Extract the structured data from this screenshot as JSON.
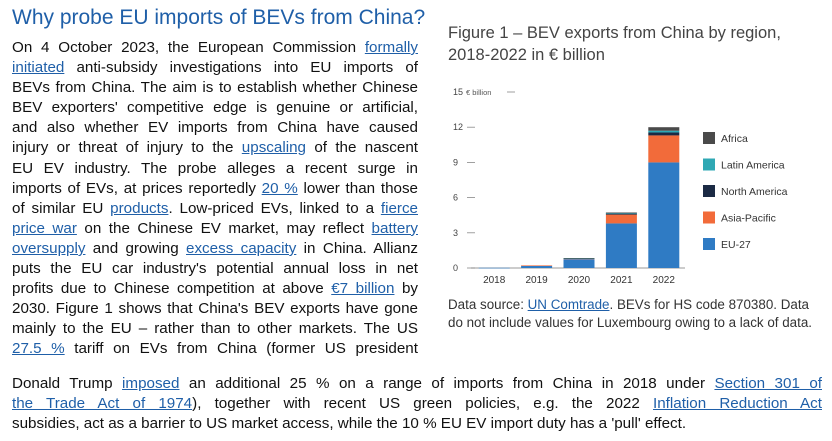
{
  "article": {
    "heading": "Why probe EU imports of BEVs from China?",
    "lines": [
      [
        {
          "t": "On 4 October 2023, the European Commission "
        },
        {
          "t": "formally",
          "link": true
        }
      ],
      [
        {
          "t": "initiated",
          "link": true
        },
        {
          "t": " anti-subsidy investigations into EU imports of"
        }
      ],
      [
        {
          "t": "BEVs from China. The aim is to establish whether Chinese"
        }
      ],
      [
        {
          "t": "BEV exporters' competitive edge is genuine or artificial,"
        }
      ],
      [
        {
          "t": "and also whether EV imports from China have caused"
        }
      ],
      [
        {
          "t": "injury or threat of injury to the "
        },
        {
          "t": "upscaling",
          "link": true
        },
        {
          "t": " of the nascent"
        }
      ],
      [
        {
          "t": "EU EV industry. The probe alleges a recent surge in"
        }
      ],
      [
        {
          "t": "imports of EVs, at prices reportedly "
        },
        {
          "t": "20 %",
          "link": true
        },
        {
          "t": " lower than those"
        }
      ],
      [
        {
          "t": "of similar EU "
        },
        {
          "t": "products",
          "link": true
        },
        {
          "t": ". Low-priced EVs, linked to a "
        },
        {
          "t": "fierce",
          "link": true
        }
      ],
      [
        {
          "t": "price war",
          "link": true
        },
        {
          "t": " on the Chinese EV market, may reflect "
        },
        {
          "t": "battery",
          "link": true
        }
      ],
      [
        {
          "t": "oversupply",
          "link": true
        },
        {
          "t": " and growing "
        },
        {
          "t": "excess capacity",
          "link": true
        },
        {
          "t": " in China. Allianz"
        }
      ],
      [
        {
          "t": "puts the EU car industry's potential annual loss in net"
        }
      ],
      [
        {
          "t": "profits due to Chinese competition at above "
        },
        {
          "t": "€7 billion",
          "link": true
        },
        {
          "t": " by"
        }
      ],
      [
        {
          "t": "2030. Figure 1 shows that China's BEV exports have gone"
        }
      ],
      [
        {
          "t": "mainly to the EU – rather than to other markets. The US"
        }
      ],
      [
        {
          "t": "27.5 %",
          "link": true
        },
        {
          "t": " tariff on EVs from China (former US president"
        }
      ]
    ],
    "full_lines": [
      [
        {
          "t": "Donald Trump "
        },
        {
          "t": "imposed",
          "link": true
        },
        {
          "t": " an additional 25 % on a range of imports from China in 2018 under "
        },
        {
          "t": "Section 301 of",
          "link": true
        }
      ],
      [
        {
          "t": "the Trade Act of 1974",
          "link": true
        },
        {
          "t": "), together with recent US green policies, e.g. the 2022 "
        },
        {
          "t": "Inflation Reduction Act",
          "link": true
        }
      ],
      [
        {
          "t": "subsidies, act as a barrier to US market access, while the 10 % EU EV import duty has a 'pull' effect.",
          "last": true
        }
      ]
    ]
  },
  "figure": {
    "title": "Figure 1 – BEV exports from China by region, 2018-2022 in € billion",
    "source_prefix": "Data source: ",
    "source_link": "UN Comtrade",
    "source_rest": ". BEVs for HS code 870380. Data do not include values for Luxembourg owing to a lack of data."
  },
  "chart_data": {
    "type": "bar",
    "stacked": true,
    "categories": [
      "2018",
      "2019",
      "2020",
      "2021",
      "2022"
    ],
    "ylim": [
      0,
      15
    ],
    "yticks": [
      0,
      3,
      6,
      9,
      12,
      15
    ],
    "ytick_labels": [
      "0",
      "3",
      "6",
      "9",
      "12",
      "15"
    ],
    "yunit": "€ billion",
    "series": [
      {
        "name": "EU-27",
        "color": "#2f7bc4",
        "values": [
          0.02,
          0.2,
          0.75,
          3.8,
          9.0
        ]
      },
      {
        "name": "Asia-Pacific",
        "color": "#f26b3a",
        "values": [
          0.0,
          0.02,
          0.05,
          0.75,
          2.3
        ]
      },
      {
        "name": "North America",
        "color": "#1b2a44",
        "values": [
          0.0,
          0.0,
          0.02,
          0.1,
          0.25
        ]
      },
      {
        "name": "Latin America",
        "color": "#2fa8b4",
        "values": [
          0.0,
          0.0,
          0.01,
          0.03,
          0.15
        ]
      },
      {
        "name": "Africa",
        "color": "#4a4a4a",
        "values": [
          0.0,
          0.0,
          0.01,
          0.05,
          0.3
        ]
      }
    ],
    "legend_order": [
      "Africa",
      "Latin America",
      "North America",
      "Asia-Pacific",
      "EU-27"
    ],
    "legend_position": "right",
    "grid": false
  }
}
